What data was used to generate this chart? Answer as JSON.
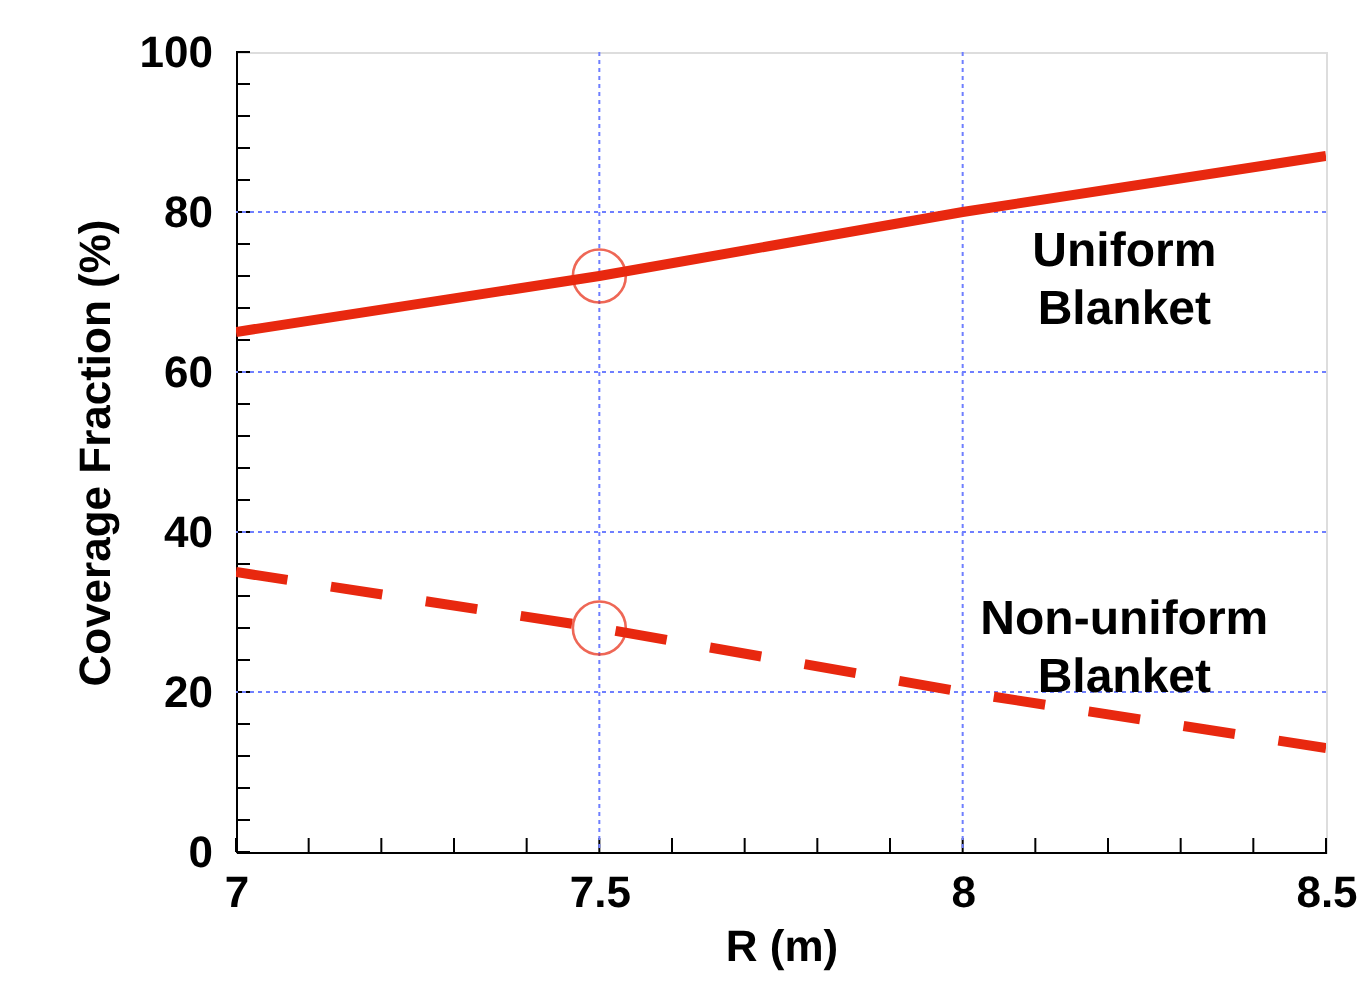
{
  "chart_data": {
    "type": "line",
    "xlabel": "R (m)",
    "ylabel": "Coverage Fraction (%)",
    "x": [
      7,
      7.5,
      8,
      8.5
    ],
    "series": [
      {
        "name": "Uniform Blanket",
        "color": "#e8280f",
        "values": [
          65,
          72,
          80,
          87
        ],
        "line_style": "solid"
      },
      {
        "name": "Non-uniform Blanket",
        "color": "#e8280f",
        "values": [
          35,
          28,
          20,
          13
        ],
        "line_style": "dashed"
      },
      {
        "type": "scatter",
        "color": "#e8280f",
        "marker": "circle",
        "x": [
          7.5,
          7.5
        ],
        "values": [
          72,
          28
        ]
      }
    ],
    "xlim": [
      7,
      8.5
    ],
    "ylim": [
      0,
      100
    ],
    "xticks": [
      7,
      {
        "value": 7.1,
        "label": null
      },
      {
        "value": 7.2,
        "label": null
      },
      {
        "value": 7.3,
        "label": null
      },
      {
        "value": 7.4,
        "label": null
      },
      7.5,
      {
        "value": 7.6,
        "label": null
      },
      {
        "value": 7.7,
        "label": null
      },
      {
        "value": 7.8,
        "label": null
      },
      {
        "value": 7.9,
        "label": null
      },
      8,
      {
        "value": 8.1,
        "label": null
      },
      {
        "value": 8.2,
        "label": null
      },
      {
        "value": 8.3,
        "label": null
      },
      {
        "value": 8.4,
        "label": null
      },
      8.5
    ],
    "yticks": [
      0,
      {
        "value": 4,
        "label": null
      },
      {
        "value": 8,
        "label": null
      },
      {
        "value": 12,
        "label": null
      },
      {
        "value": 16,
        "label": null
      },
      20,
      {
        "value": 24,
        "label": null
      },
      {
        "value": 28,
        "label": null
      },
      {
        "value": 32,
        "label": null
      },
      {
        "value": 36,
        "label": null
      },
      40,
      {
        "value": 44,
        "label": null
      },
      {
        "value": 48,
        "label": null
      },
      {
        "value": 52,
        "label": null
      },
      {
        "value": 56,
        "label": null
      },
      60,
      {
        "value": 64,
        "label": null
      },
      {
        "value": 68,
        "label": null
      },
      {
        "value": 72,
        "label": null
      },
      {
        "value": 76,
        "label": null
      },
      80,
      {
        "value": 84,
        "label": null
      },
      {
        "value": 88,
        "label": null
      },
      {
        "value": 92,
        "label": null
      },
      {
        "value": 96,
        "label": null
      },
      100
    ],
    "ref_lines": [
      {
        "axis": "x",
        "value": 7.5,
        "color": "#6f7fff",
        "line_style": "dotted"
      },
      {
        "axis": "x",
        "value": 8,
        "color": "#6f7fff",
        "line_style": "dotted"
      },
      {
        "axis": "y",
        "value": 20,
        "color": "#6f7fff",
        "line_style": "dotted"
      },
      {
        "axis": "y",
        "value": 40,
        "color": "#6f7fff",
        "line_style": "dotted"
      },
      {
        "axis": "y",
        "value": 60,
        "color": "#6f7fff",
        "line_style": "dotted"
      },
      {
        "axis": "y",
        "value": 80,
        "color": "#6f7fff",
        "line_style": "dotted"
      }
    ]
  }
}
